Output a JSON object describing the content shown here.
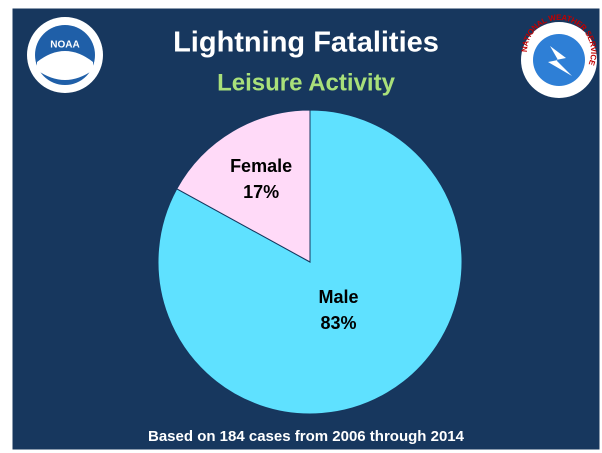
{
  "chart_data": {
    "type": "pie",
    "title": "Lightning Fatalities",
    "subtitle": "Leisure Activity",
    "categories": [
      "Male",
      "Female"
    ],
    "values": [
      83,
      17
    ],
    "value_labels": [
      "83%",
      "17%"
    ],
    "colors": [
      "#5fe1ff",
      "#ffdaf8"
    ],
    "footnote": "Based on 184 cases from 2006 through 2014"
  },
  "logos": {
    "left": "NOAA",
    "right": "NATIONAL WEATHER SERVICE"
  }
}
